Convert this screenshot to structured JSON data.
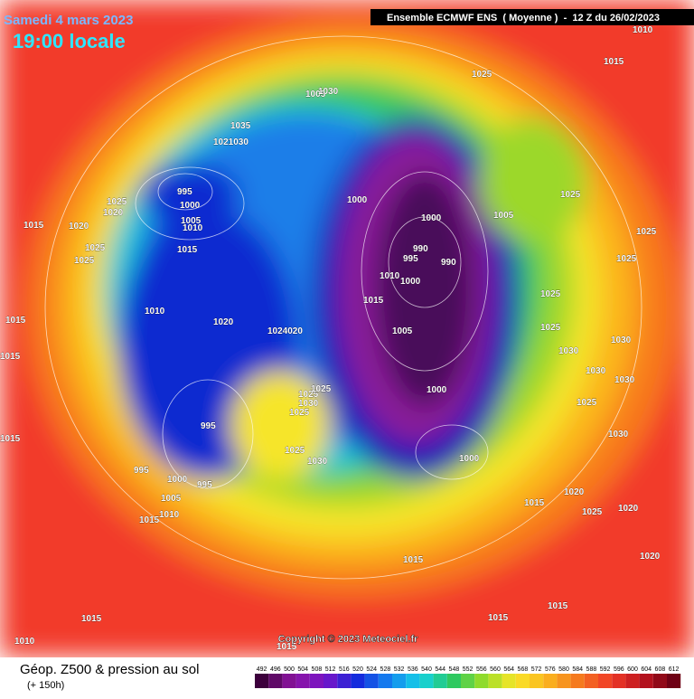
{
  "header": {
    "date": "Samedi 4 mars 2023",
    "time": "19:00 locale",
    "model": "Ensemble ECMWF ENS  ( Moyenne )  -  12 Z du 26/02/2023"
  },
  "footer": {
    "title": "Géop. Z500 & pression au sol",
    "lead": "(+ 150h)",
    "copyright": "Copyright © 2023 Meteociel.fr"
  },
  "scale": {
    "values": [
      492,
      496,
      500,
      504,
      508,
      512,
      516,
      520,
      524,
      528,
      532,
      536,
      540,
      544,
      548,
      552,
      556,
      560,
      564,
      568,
      572,
      576,
      580,
      584,
      588,
      592,
      596,
      600,
      604,
      608,
      612
    ]
  },
  "isobars": {
    "labels": [
      "1010",
      "1015",
      "1025",
      "1005",
      "1030",
      "1035",
      "1021030",
      "995",
      "1000",
      "1005",
      "1010",
      "1015",
      "1015",
      "1025",
      "1020",
      "1020",
      "1025",
      "1025",
      "1015",
      "1010",
      "1020",
      "1024020",
      "1015",
      "1015",
      "995",
      "995",
      "1000",
      "995",
      "1005",
      "1015",
      "1010",
      "1025",
      "1030",
      "1025",
      "1025",
      "1025",
      "1030",
      "1000",
      "1000",
      "990",
      "995",
      "990",
      "1010",
      "1000",
      "1015",
      "1005",
      "1000",
      "1000",
      "1025",
      "1005",
      "1025",
      "1025",
      "1025",
      "1025",
      "1030",
      "1030",
      "1030",
      "1030",
      "1025",
      "1030",
      "1015",
      "1020",
      "1025",
      "1020",
      "1015",
      "1015",
      "1020",
      "1015",
      "1015",
      "1010",
      "1015"
    ]
  }
}
